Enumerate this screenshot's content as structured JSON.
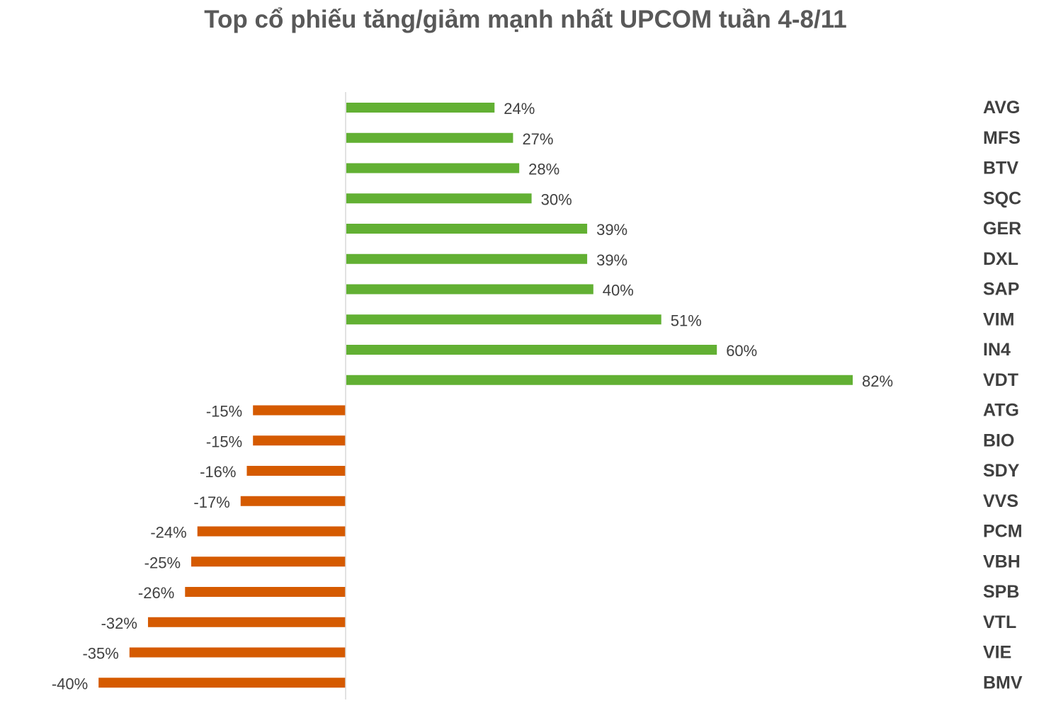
{
  "chart_data": {
    "type": "bar",
    "orientation": "horizontal",
    "title": "Top cổ phiếu tăng/giảm mạnh nhất UPCOM tuần 4-8/11",
    "xlabel": "",
    "ylabel": "",
    "categories": [
      "AVG",
      "MFS",
      "BTV",
      "SQC",
      "GER",
      "DXL",
      "SAP",
      "VIM",
      "IN4",
      "VDT",
      "ATG",
      "BIO",
      "SDY",
      "VVS",
      "PCM",
      "VBH",
      "SPB",
      "VTL",
      "VIE",
      "BMV"
    ],
    "values": [
      24,
      27,
      28,
      30,
      39,
      39,
      40,
      51,
      60,
      82,
      -15,
      -15,
      -16,
      -17,
      -24,
      -25,
      -26,
      -32,
      -35,
      -40
    ],
    "labels": [
      "24%",
      "27%",
      "28%",
      "30%",
      "39%",
      "39%",
      "40%",
      "51%",
      "60%",
      "82%",
      "-15%",
      "-15%",
      "-16%",
      "-17%",
      "-24%",
      "-25%",
      "-26%",
      "-32%",
      "-35%",
      "-40%"
    ],
    "unit": "%",
    "xlim": [
      -40,
      82
    ],
    "grid": false,
    "legend": "none",
    "colors": {
      "positive": "#62B033",
      "negative": "#D55A00",
      "axis": "#D9D9D9",
      "text": "#404040",
      "title": "#595959"
    }
  }
}
